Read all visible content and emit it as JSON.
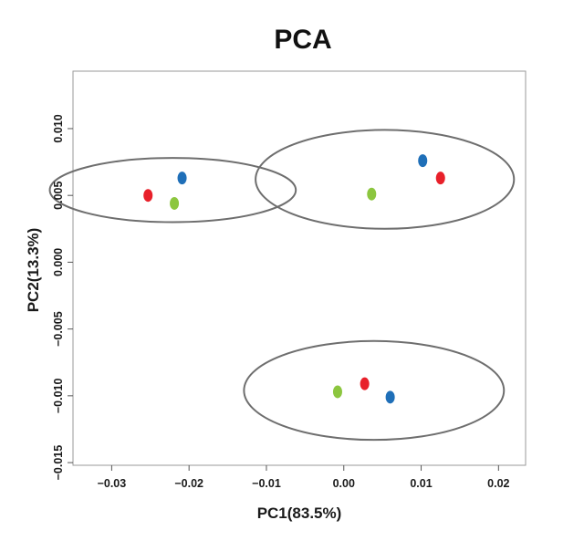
{
  "chart_data": {
    "type": "scatter",
    "title": "PCA",
    "xlabel": "PC1(83.5%)",
    "ylabel": "PC2(13.3%)",
    "xlim": [
      -0.035,
      0.0235
    ],
    "ylim": [
      -0.0152,
      0.0143
    ],
    "xticks": [
      -0.03,
      -0.02,
      -0.01,
      0.0,
      0.01,
      0.02
    ],
    "xtick_labels": [
      "−0.03",
      "−0.02",
      "−0.01",
      "0.00",
      "0.01",
      "0.02"
    ],
    "yticks": [
      -0.015,
      -0.01,
      -0.005,
      0.0,
      0.005,
      0.01
    ],
    "ytick_labels": [
      "−0.015",
      "−0.010",
      "−0.005",
      "0.000",
      "0.005",
      "0.010"
    ],
    "grid": false,
    "legend": "none",
    "series": [
      {
        "color": "#e8202a",
        "points": [
          [
            -0.0253,
            0.005
          ],
          [
            0.0027,
            -0.0091
          ],
          [
            0.0125,
            0.0063
          ]
        ]
      },
      {
        "color": "#8cc63f",
        "points": [
          [
            -0.0219,
            0.0044
          ],
          [
            -0.0008,
            -0.0097
          ],
          [
            0.0036,
            0.0051
          ]
        ]
      },
      {
        "color": "#1f6fb8",
        "points": [
          [
            -0.0209,
            0.0063
          ],
          [
            0.006,
            -0.0101
          ],
          [
            0.0102,
            0.0076
          ]
        ]
      }
    ],
    "group_ellipses": [
      {
        "center": [
          -0.0221,
          0.0054
        ],
        "radii": [
          0.0159,
          0.0024
        ]
      },
      {
        "center": [
          0.0053,
          0.0062
        ],
        "radii": [
          0.0167,
          0.0037
        ]
      },
      {
        "center": [
          0.0039,
          -0.0096
        ],
        "radii": [
          0.0168,
          0.0037
        ]
      }
    ]
  }
}
